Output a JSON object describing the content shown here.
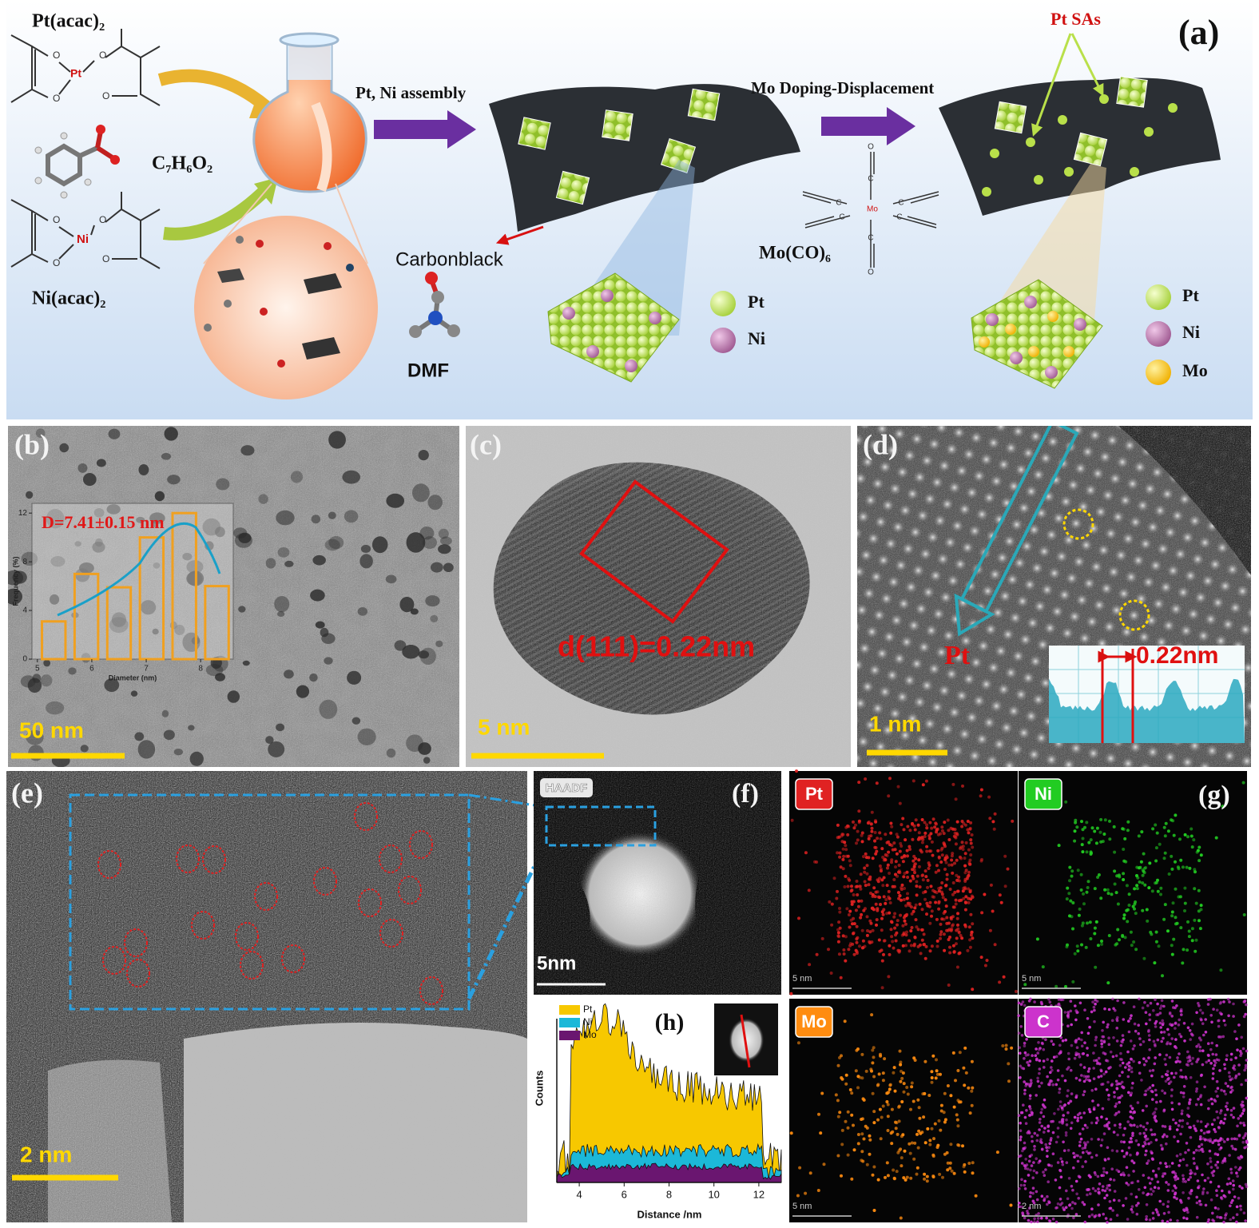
{
  "panel_a": {
    "label": "(a)",
    "pt_precursor": "Pt(acac)₂",
    "ni_precursor": "Ni(acac)₂",
    "benzoic_acid": "C₇H₆O₂",
    "pt_atom": "Pt",
    "ni_atom": "Ni",
    "o_atom": "O",
    "step1": "Pt, Ni assembly",
    "support": "Carbonblack",
    "solvent": "DMF",
    "step2": "Mo Doping-Displacement",
    "mo_source": "Mo(CO)₆",
    "mo_atom": "Mo",
    "c_atom": "C",
    "single_atoms": "Pt SAs",
    "legend1": [
      "Pt",
      "Ni"
    ],
    "legend2": [
      "Pt",
      "Ni",
      "Mo"
    ]
  },
  "panel_b": {
    "label": "(b)",
    "scale": "50 nm",
    "inset": {
      "type": "bar",
      "annotation": "D=7.41±0.15 nm",
      "xlabel": "Diameter (nm)",
      "ylabel": "Frequency (%)",
      "x": [
        5.3,
        5.9,
        6.5,
        7.1,
        7.7,
        8.3
      ],
      "values": [
        3.1,
        7.0,
        5.9,
        10,
        12,
        6
      ],
      "color": "#f0a020",
      "xlim": [
        4.9,
        8.6
      ],
      "ylim": [
        0,
        12.8
      ],
      "xticks": [
        5,
        6,
        7,
        8
      ],
      "yticks": [
        0,
        4,
        8,
        12
      ]
    }
  },
  "panel_c": {
    "label": "(c)",
    "annotation": "d(111)=0.22nm",
    "scale": "5 nm"
  },
  "panel_d": {
    "label": "(d)",
    "atom": "Pt",
    "spacing": "0.22nm",
    "scale": "1 nm"
  },
  "panel_e": {
    "label": "(e)",
    "scale": "2 nm"
  },
  "panel_f": {
    "label": "(f)",
    "mode": "HAADF",
    "scale": "5nm"
  },
  "panel_g": {
    "label": "(g)",
    "maps": [
      {
        "element": "Pt",
        "scale": "5 nm",
        "color": "#e02222"
      },
      {
        "element": "Ni",
        "scale": "5 nm",
        "color": "#22cc22"
      },
      {
        "element": "Mo",
        "scale": "5 nm",
        "color": "#ff8c10"
      },
      {
        "element": "C",
        "scale": "2 nm",
        "color": "#cc33cc"
      }
    ]
  },
  "panel_h": {
    "label": "(h)",
    "xlabel": "Distance /nm",
    "ylabel": "Counts",
    "series": [
      {
        "name": "Pt",
        "color": "#f7c800"
      },
      {
        "name": "Ni",
        "color": "#1cb8d8"
      },
      {
        "name": "Mo",
        "color": "#6a1670"
      }
    ],
    "xlim": [
      3,
      13
    ],
    "xticks": [
      4,
      6,
      8,
      10,
      12
    ]
  }
}
